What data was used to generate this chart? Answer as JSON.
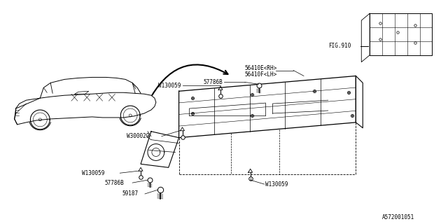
{
  "bg_color": "#ffffff",
  "line_color": "#000000",
  "parts": {
    "56410E_RH": "56410E<RH>",
    "56410F_LH": "56410F<LH>",
    "57786B_top": "57786B",
    "W130059_top": "W130059",
    "W300029": "W300029",
    "W130059_mid": "W130059",
    "57786B_bot": "57786B",
    "59187": "59187",
    "W130059_bot": "W130059",
    "FIG910": "FIG.910",
    "diagram_id": "A572001051"
  }
}
